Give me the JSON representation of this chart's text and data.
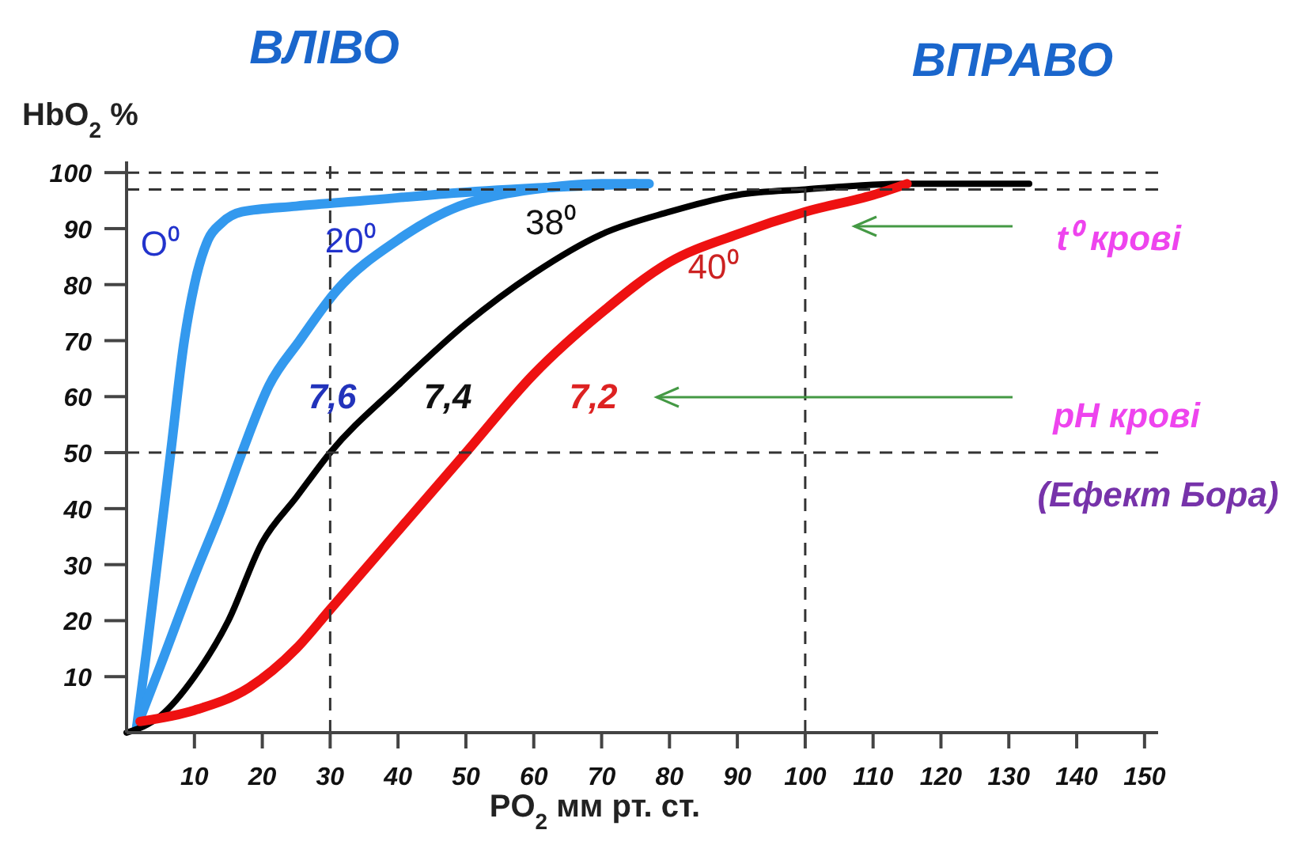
{
  "chart_data": {
    "type": "line",
    "xlabel": "PO$_{2}$  мм рт. ст.",
    "ylabel": "HbO$_{2}$  %",
    "xlim": [
      0,
      152
    ],
    "xticks": [
      10,
      20,
      30,
      40,
      50,
      60,
      70,
      80,
      90,
      100,
      110,
      120,
      130,
      140,
      150
    ],
    "ylim": [
      0,
      102
    ],
    "yticks": [
      10,
      20,
      30,
      40,
      50,
      60,
      70,
      80,
      90,
      100
    ],
    "grid": false,
    "marker": "none",
    "line_style": "solid",
    "series": [
      {
        "name": "O⁰",
        "color": "#3399ee",
        "x": [
          1.5,
          3,
          4.5,
          6.5,
          8.5,
          10,
          12,
          14,
          17,
          25,
          35,
          50,
          65,
          75
        ],
        "values": [
          1,
          15,
          30,
          50,
          70,
          80,
          88,
          91,
          93,
          94,
          95,
          96.5,
          97.5,
          98
        ]
      },
      {
        "name": "20⁰",
        "color": "#3399ee",
        "x": [
          1.5,
          5,
          10,
          14,
          17,
          21,
          25.5,
          31,
          40,
          49,
          55,
          60,
          70,
          77
        ],
        "values": [
          1,
          12,
          28,
          40,
          50,
          62,
          70,
          79,
          88,
          94,
          96,
          97,
          98,
          98
        ]
      },
      {
        "name": "38⁰",
        "color": "#000000",
        "x": [
          0,
          5,
          10,
          15,
          20,
          25,
          30,
          40,
          50,
          60,
          70,
          80,
          90,
          100,
          115,
          133
        ],
        "values": [
          0,
          3,
          10,
          20,
          34,
          42,
          50,
          62,
          73,
          82,
          89,
          93,
          96,
          97,
          98,
          98
        ]
      },
      {
        "name": "40⁰",
        "color": "#ee1111",
        "x": [
          2,
          10,
          18,
          25,
          30,
          40,
          50,
          60,
          70,
          80,
          90,
          100,
          110,
          115
        ],
        "values": [
          2,
          4,
          8,
          15,
          22,
          36,
          50,
          64,
          75,
          84,
          89,
          93,
          96,
          98
        ]
      }
    ],
    "ref_lines": [
      {
        "axis": "y",
        "value": 100,
        "line_style": "dashed",
        "color": "#333333"
      },
      {
        "axis": "y",
        "value": 97,
        "line_style": "dashed",
        "color": "#333333"
      },
      {
        "axis": "y",
        "value": 50,
        "line_style": "dashed",
        "color": "#333333"
      },
      {
        "axis": "x",
        "value": 30,
        "line_style": "dashed",
        "color": "#333333"
      },
      {
        "axis": "x",
        "value": 100,
        "line_style": "dashed",
        "color": "#333333"
      }
    ],
    "annotations": [
      "ВЛІВО",
      "ВПРАВО",
      "t⁰ крові",
      "pH крові",
      "(Ефект Бора)",
      "7,6",
      "7,4",
      "7,2"
    ]
  }
}
